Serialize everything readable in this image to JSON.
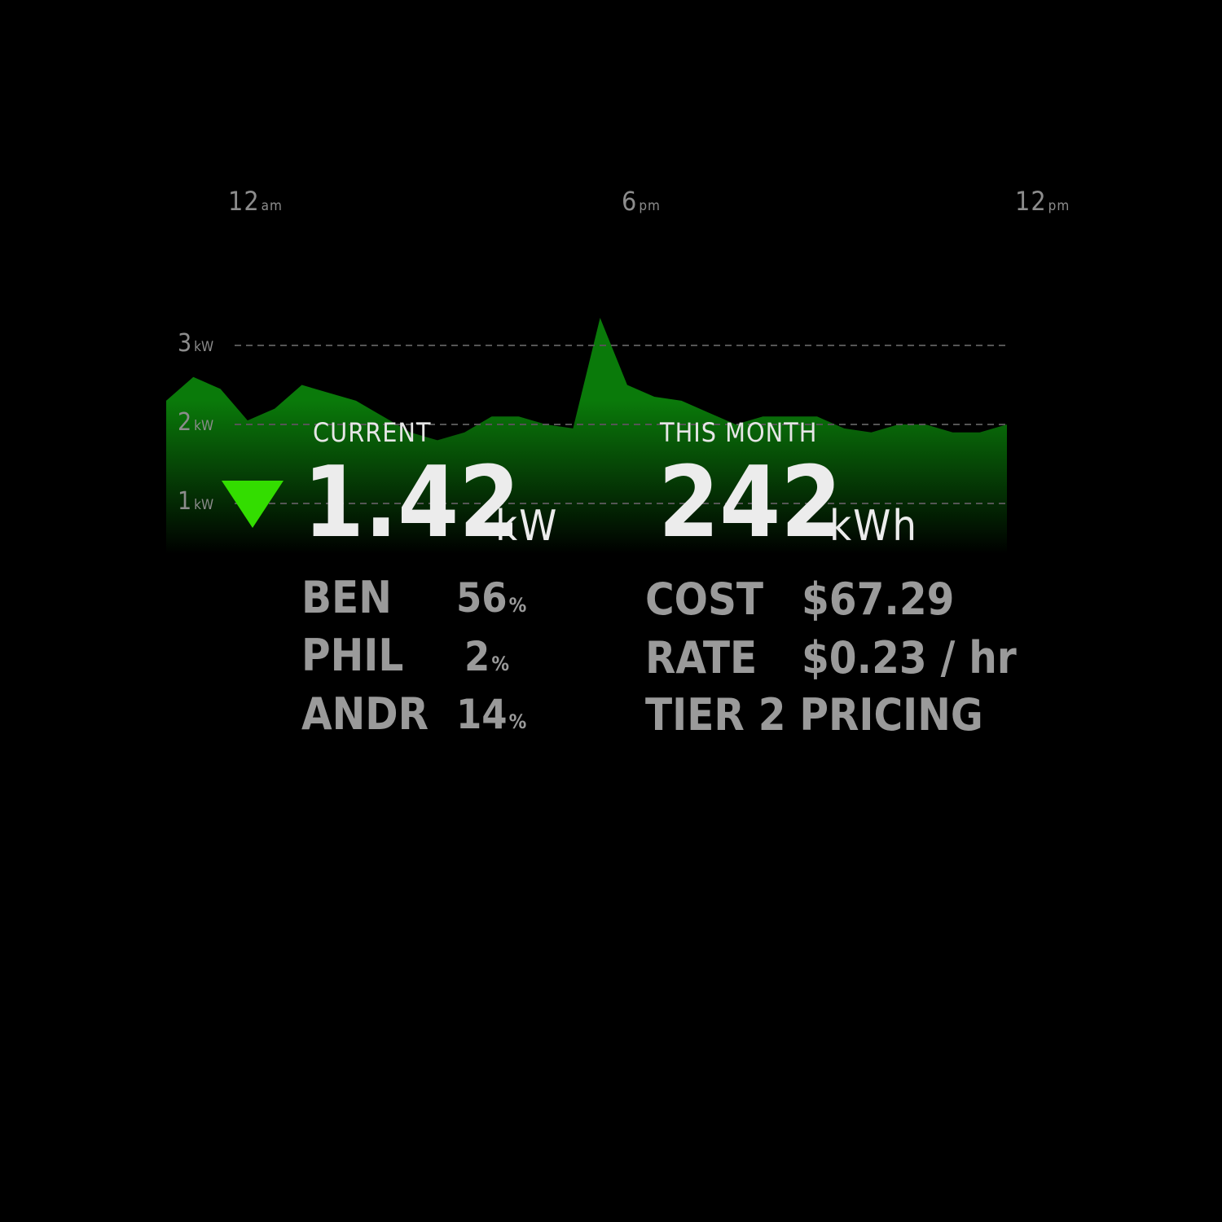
{
  "chart_data": {
    "type": "area",
    "title": "",
    "xlabel": "",
    "ylabel": "",
    "x_ticks": [
      {
        "value": "12",
        "unit": "am",
        "pos": 0.083
      },
      {
        "value": "6",
        "unit": "pm",
        "pos": 0.405
      },
      {
        "value": "12",
        "unit": "pm",
        "pos": 0.727
      }
    ],
    "y_ticks": [
      {
        "value": "3",
        "unit": "kW",
        "kw": 3
      },
      {
        "value": "2",
        "unit": "kW",
        "kw": 2
      },
      {
        "value": "1",
        "unit": "kW",
        "kw": 1
      }
    ],
    "ylim": [
      0,
      3.4
    ],
    "grid": true,
    "series": [
      {
        "values": [
          2.3,
          2.6,
          2.45,
          2.05,
          2.2,
          2.5,
          2.4,
          2.3,
          2.1,
          1.9,
          1.8,
          1.9,
          2.1,
          2.1,
          2.0,
          1.95,
          3.35,
          2.5,
          2.35,
          2.3,
          2.15,
          2.0,
          2.1,
          2.1,
          2.1,
          1.95,
          1.9,
          2.0,
          2.0,
          1.9,
          1.9,
          2.0
        ]
      }
    ],
    "colors": {
      "fill_top": "#0a7a0a",
      "fill_bottom": "#000000",
      "grid": "#555555"
    }
  },
  "current": {
    "heading": "CURRENT",
    "value": "1.42",
    "unit": "kW",
    "trend": "down",
    "trend_color": "#33dd00",
    "users": [
      {
        "name": "BEN",
        "value": "56",
        "unit": "%"
      },
      {
        "name": "PHIL",
        "value": "2",
        "unit": "%"
      },
      {
        "name": "ANDR",
        "value": "14",
        "unit": "%"
      }
    ]
  },
  "month": {
    "heading": "THIS MONTH",
    "value": "242",
    "unit": "kWh",
    "cost_label": "COST",
    "cost_value": "$67.29",
    "rate_label": "RATE",
    "rate_value": "$0.23 / hr",
    "tier": "TIER 2 PRICING"
  }
}
